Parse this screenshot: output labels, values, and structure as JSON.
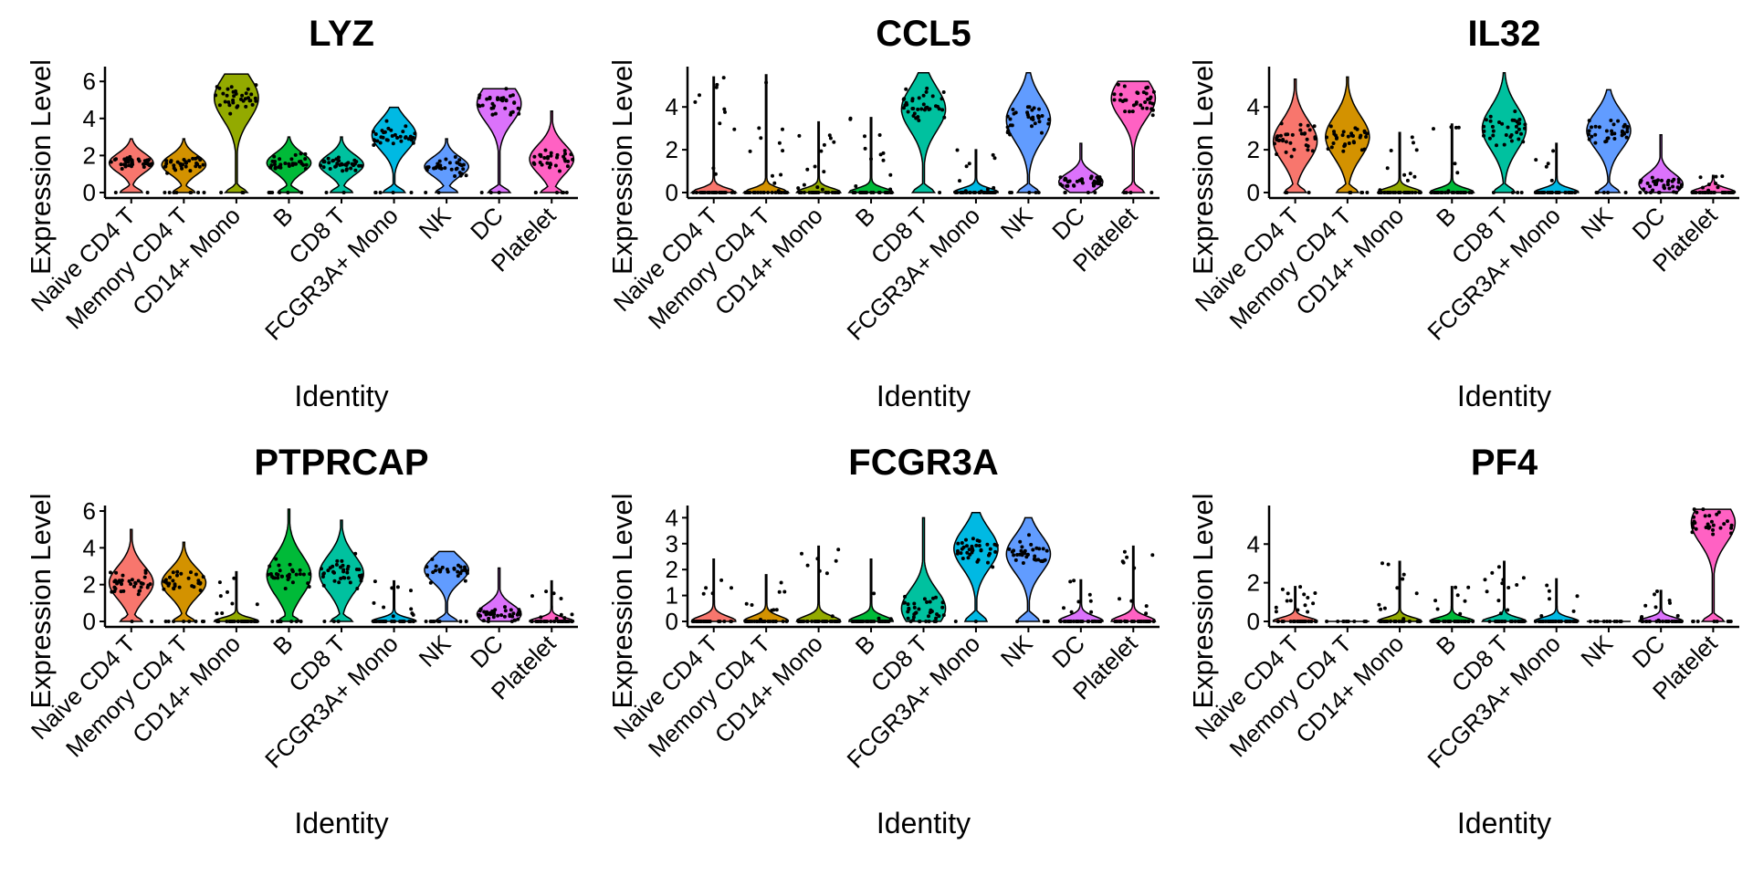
{
  "figure": {
    "xlabel": "Identity",
    "ylabel": "Expression Level",
    "categories": [
      "Naive CD4 T",
      "Memory CD4 T",
      "CD14+ Mono",
      "B",
      "CD8 T",
      "FCGR3A+ Mono",
      "NK",
      "DC",
      "Platelet"
    ],
    "colors": [
      "#F8766D",
      "#D39200",
      "#93AA00",
      "#00BA38",
      "#00C19F",
      "#00B9E3",
      "#619CFF",
      "#DB72FB",
      "#FF61C3"
    ]
  },
  "chart_data": [
    {
      "type": "violin",
      "title": "LYZ",
      "xlabel": "Identity",
      "ylabel": "Expression Level",
      "ylim": [
        -0.2,
        6.7
      ],
      "yticks": [
        0,
        2,
        4,
        6
      ],
      "categories": [
        "Naive CD4 T",
        "Memory CD4 T",
        "CD14+ Mono",
        "B",
        "CD8 T",
        "FCGR3A+ Mono",
        "NK",
        "DC",
        "Platelet"
      ],
      "max_values": [
        2.9,
        2.9,
        6.4,
        3.0,
        3.0,
        4.6,
        2.9,
        5.6,
        4.4
      ],
      "median_values": [
        1.6,
        1.5,
        5.1,
        1.6,
        1.5,
        3.1,
        1.4,
        4.8,
        1.8
      ]
    },
    {
      "type": "violin",
      "title": "CCL5",
      "xlabel": "Identity",
      "ylabel": "Expression Level",
      "ylim": [
        -0.2,
        5.8
      ],
      "yticks": [
        0,
        2,
        4
      ],
      "categories": [
        "Naive CD4 T",
        "Memory CD4 T",
        "CD14+ Mono",
        "B",
        "CD8 T",
        "FCGR3A+ Mono",
        "NK",
        "DC",
        "Platelet"
      ],
      "max_values": [
        5.4,
        5.5,
        3.3,
        3.5,
        5.6,
        2.0,
        5.6,
        2.3,
        5.2
      ],
      "median_values": [
        0,
        0,
        0,
        0,
        3.9,
        0,
        3.4,
        0.5,
        4.4
      ]
    },
    {
      "type": "violin",
      "title": "IL32",
      "xlabel": "Identity",
      "ylabel": "Expression Level",
      "ylim": [
        -0.2,
        5.8
      ],
      "yticks": [
        0,
        2,
        4
      ],
      "categories": [
        "Naive CD4 T",
        "Memory CD4 T",
        "CD14+ Mono",
        "B",
        "CD8 T",
        "FCGR3A+ Mono",
        "NK",
        "DC",
        "Platelet"
      ],
      "max_values": [
        5.3,
        5.4,
        2.8,
        3.2,
        5.6,
        2.3,
        4.8,
        2.7,
        0.8
      ],
      "median_values": [
        2.4,
        2.6,
        0,
        0,
        3.0,
        0,
        2.9,
        0.4,
        0
      ]
    },
    {
      "type": "violin",
      "title": "PTPRCAP",
      "xlabel": "Identity",
      "ylabel": "Expression Level",
      "ylim": [
        -0.2,
        6.2
      ],
      "yticks": [
        0,
        2,
        4,
        6
      ],
      "categories": [
        "Naive CD4 T",
        "Memory CD4 T",
        "CD14+ Mono",
        "B",
        "CD8 T",
        "FCGR3A+ Mono",
        "NK",
        "DC",
        "Platelet"
      ],
      "max_values": [
        5.0,
        4.3,
        2.7,
        6.1,
        5.5,
        2.2,
        3.8,
        2.9,
        2.2
      ],
      "median_values": [
        2.1,
        2.1,
        0,
        2.5,
        2.6,
        0,
        2.8,
        0.4,
        0
      ]
    },
    {
      "type": "violin",
      "title": "FCGR3A",
      "xlabel": "Identity",
      "ylabel": "Expression Level",
      "ylim": [
        -0.2,
        4.4
      ],
      "yticks": [
        0,
        1,
        2,
        3,
        4
      ],
      "categories": [
        "Naive CD4 T",
        "Memory CD4 T",
        "CD14+ Mono",
        "B",
        "CD8 T",
        "FCGR3A+ Mono",
        "NK",
        "DC",
        "Platelet"
      ],
      "max_values": [
        2.4,
        1.8,
        2.9,
        2.4,
        4.0,
        4.2,
        4.0,
        1.6,
        2.9
      ],
      "median_values": [
        0,
        0,
        0,
        0,
        0.5,
        2.8,
        2.6,
        0,
        0
      ]
    },
    {
      "type": "violin",
      "title": "PF4",
      "xlabel": "Identity",
      "ylabel": "Expression Level",
      "ylim": [
        -0.2,
        5.9
      ],
      "yticks": [
        0,
        2,
        4
      ],
      "categories": [
        "Naive CD4 T",
        "Memory CD4 T",
        "CD14+ Mono",
        "B",
        "CD8 T",
        "FCGR3A+ Mono",
        "NK",
        "DC",
        "Platelet"
      ],
      "max_values": [
        1.8,
        0,
        3.1,
        1.8,
        3.1,
        2.2,
        0,
        1.6,
        5.8
      ],
      "median_values": [
        0,
        0,
        0,
        0,
        0,
        0,
        0,
        0,
        5.1
      ]
    }
  ]
}
